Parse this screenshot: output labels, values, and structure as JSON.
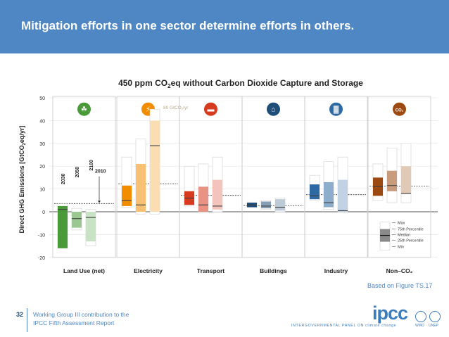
{
  "slide": {
    "title": "Mitigation efforts in one sector determine efforts in others.",
    "source_note": "Based on Figure TS.17",
    "page_number": "32",
    "footer_line1": "Working Group III contribution to the",
    "footer_line2": "IPCC Fifth Assessment Report",
    "logo_text": "ipcc",
    "logo_tagline": "INTERGOVERNMENTAL PANEL ON climate change",
    "logo_wmo": "WMO",
    "logo_unep": "UNEP"
  },
  "chart_data": {
    "type": "box",
    "title_pre": "450 ppm CO",
    "title_sub": "2",
    "title_post": "eq without Carbon Dioxide Capture and Storage",
    "ylabel_pre": "Direct GHG Emissions [GtCO",
    "ylabel_sub": "2",
    "ylabel_post": "eq/yr]",
    "ylim": [
      -20,
      50
    ],
    "yticks": [
      -20,
      -10,
      0,
      10,
      20,
      30,
      40,
      50
    ],
    "year_labels": [
      "2030",
      "2050",
      "2100"
    ],
    "baseline_label": "2010",
    "overflow_label": "80 GtCO₂/yr",
    "legend": [
      "Max",
      "75th Percentile",
      "Median",
      "25th Percentile",
      "Min"
    ],
    "sectors": [
      {
        "name": "Land Use (net)",
        "color": "#4a9a3a",
        "icon": "leaf-icon",
        "icon_glyph": "☘",
        "baseline": 3.6,
        "boxes": [
          {
            "year": "2030",
            "min": -16,
            "q1": -16,
            "median": 1,
            "q3": 2.5,
            "max": 3.5
          },
          {
            "year": "2050",
            "min": -8,
            "q1": -7,
            "median": -3,
            "q3": 0,
            "max": 1.5
          },
          {
            "year": "2100",
            "min": -15,
            "q1": -13,
            "median": -2.5,
            "q3": 0,
            "max": 1
          }
        ]
      },
      {
        "name": "Electricity",
        "color": "#f28c00",
        "icon": "lightning-icon",
        "icon_glyph": "⚡",
        "baseline": 12.3,
        "boxes": [
          {
            "year": "2030",
            "min": 2,
            "q1": 2.5,
            "median": 5,
            "q3": 11.5,
            "max": 24
          },
          {
            "year": "2050",
            "min": -1,
            "q1": 0,
            "median": 3,
            "q3": 21,
            "max": 32
          },
          {
            "year": "2100",
            "min": -1,
            "q1": 0,
            "median": 29,
            "q3": 40,
            "max": 45
          }
        ]
      },
      {
        "name": "Transport",
        "color": "#d63b1f",
        "icon": "train-icon",
        "icon_glyph": "▬",
        "baseline": 7.2,
        "boxes": [
          {
            "year": "2030",
            "min": 2.5,
            "q1": 3,
            "median": 6,
            "q3": 9,
            "max": 20
          },
          {
            "year": "2050",
            "min": 0,
            "q1": 0,
            "median": 3,
            "q3": 11,
            "max": 21
          },
          {
            "year": "2100",
            "min": 0,
            "q1": 1,
            "median": 2.5,
            "q3": 14,
            "max": 24
          }
        ]
      },
      {
        "name": "Buildings",
        "color": "#1f4e79",
        "icon": "house-icon",
        "icon_glyph": "⌂",
        "baseline": 2.7,
        "boxes": [
          {
            "year": "2030",
            "min": 2,
            "q1": 2,
            "median": 3,
            "q3": 4,
            "max": 4
          },
          {
            "year": "2050",
            "min": 1,
            "q1": 1.5,
            "median": 2.5,
            "q3": 4.5,
            "max": 5
          },
          {
            "year": "2100",
            "min": 0,
            "q1": 0.5,
            "median": 2,
            "q3": 5.5,
            "max": 6
          }
        ]
      },
      {
        "name": "Industry",
        "color": "#2d6aa3",
        "icon": "factory-icon",
        "icon_glyph": "▓",
        "baseline": 7.5,
        "boxes": [
          {
            "year": "2030",
            "min": 5,
            "q1": 5.5,
            "median": 7,
            "q3": 12,
            "max": 16
          },
          {
            "year": "2050",
            "min": 1,
            "q1": 2,
            "median": 4,
            "q3": 13,
            "max": 22
          },
          {
            "year": "2100",
            "min": 0,
            "q1": 0,
            "median": 0.5,
            "q3": 14,
            "max": 24
          }
        ]
      },
      {
        "name": "Non–CO₂",
        "color": "#9c4a12",
        "icon": "co2-icon",
        "icon_glyph": "CO₂",
        "baseline": 11.3,
        "boxes": [
          {
            "year": "2030",
            "min": 5,
            "q1": 7,
            "median": 11,
            "q3": 15,
            "max": 21
          },
          {
            "year": "2050",
            "min": 4,
            "q1": 9,
            "median": 11.5,
            "q3": 18,
            "max": 28
          },
          {
            "year": "2100",
            "min": 4,
            "q1": 8,
            "median": 8,
            "q3": 20,
            "max": 30
          }
        ]
      }
    ]
  }
}
